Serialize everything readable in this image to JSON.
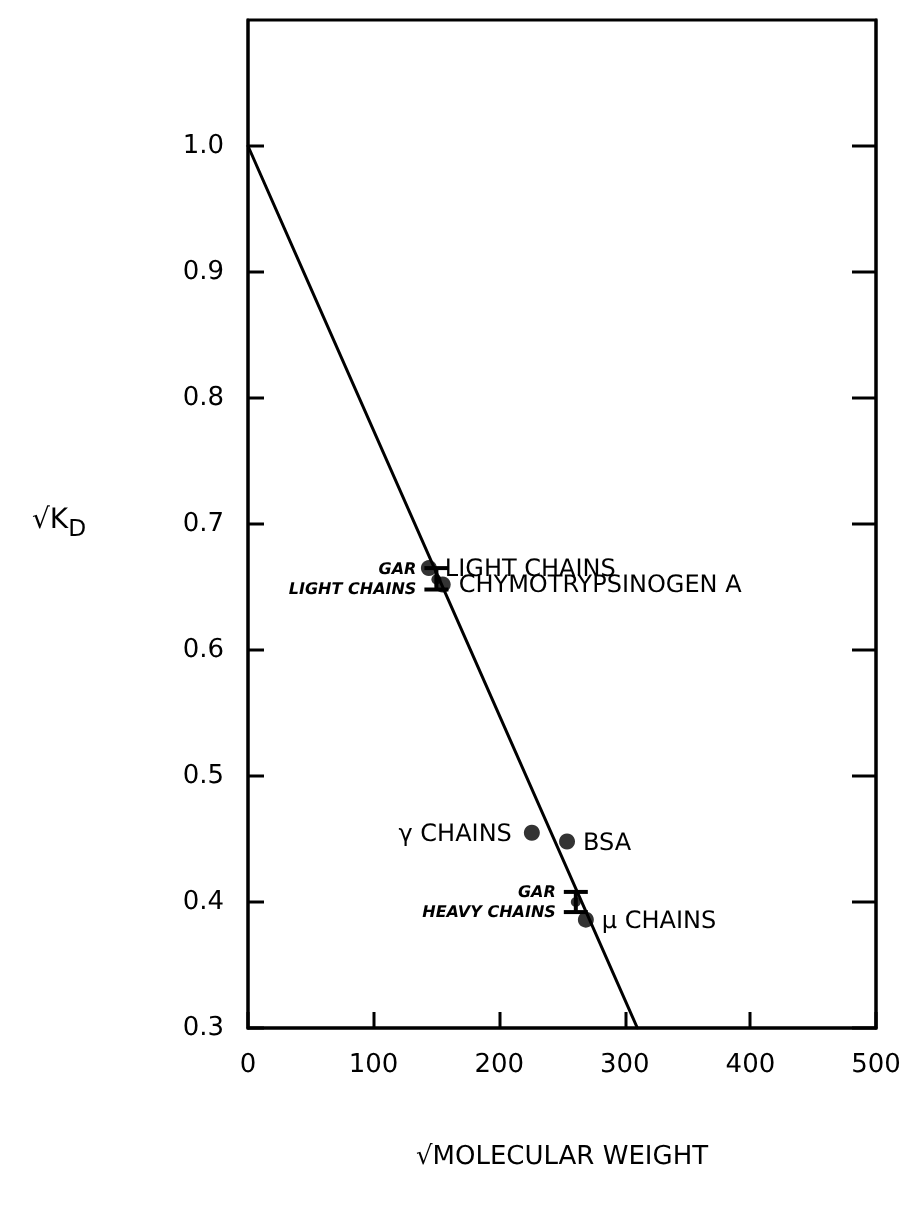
{
  "chart_data": {
    "type": "scatter",
    "xlabel": "√MOLECULAR WEIGHT",
    "ylabel": "√K$_{D}$",
    "xlim": [
      0,
      500
    ],
    "xticks": [
      0,
      100,
      200,
      300,
      400,
      500
    ],
    "ylim": [
      0.3,
      1.1
    ],
    "yticks": [
      0.3,
      0.4,
      0.5,
      0.6,
      0.7,
      0.8,
      0.9,
      {
        "value": 1,
        "label": "1.0"
      }
    ],
    "grid": false,
    "marker": "circle",
    "series": [
      {
        "type": "line",
        "color": "#000000",
        "marker": "none",
        "line_style": "solid",
        "x": [
          0,
          310
        ],
        "values": [
          1.0,
          0.3
        ]
      },
      {
        "color": "#000000",
        "x": [
          144,
          155,
          226,
          254,
          269
        ],
        "values": [
          0.665,
          0.652,
          0.455,
          0.448,
          0.386
        ]
      },
      {
        "color": "#000000",
        "x": [
          150,
          261
        ],
        "values": [
          0.656,
          0.4
        ],
        "errors": [
          [
            0.648,
            0.665
          ],
          [
            0.392,
            0.408
          ]
        ]
      }
    ],
    "annotations": [
      {
        "text": "LIGHT CHAINS",
        "x": 144,
        "y": 0.665
      },
      {
        "text": "CHYMOTRYPSINOGEN A",
        "x": 155,
        "y": 0.652
      },
      {
        "text": "GAR\nLIGHT CHAINS",
        "x": 150,
        "y": 0.656
      },
      {
        "text": "γ CHAINS",
        "x": 226,
        "y": 0.455
      },
      {
        "text": "BSA",
        "x": 254,
        "y": 0.448
      },
      {
        "text": "GAR\nHEAVY CHAINS",
        "x": 261,
        "y": 0.4
      },
      {
        "text": "μ CHAINS",
        "x": 269,
        "y": 0.386
      }
    ]
  }
}
